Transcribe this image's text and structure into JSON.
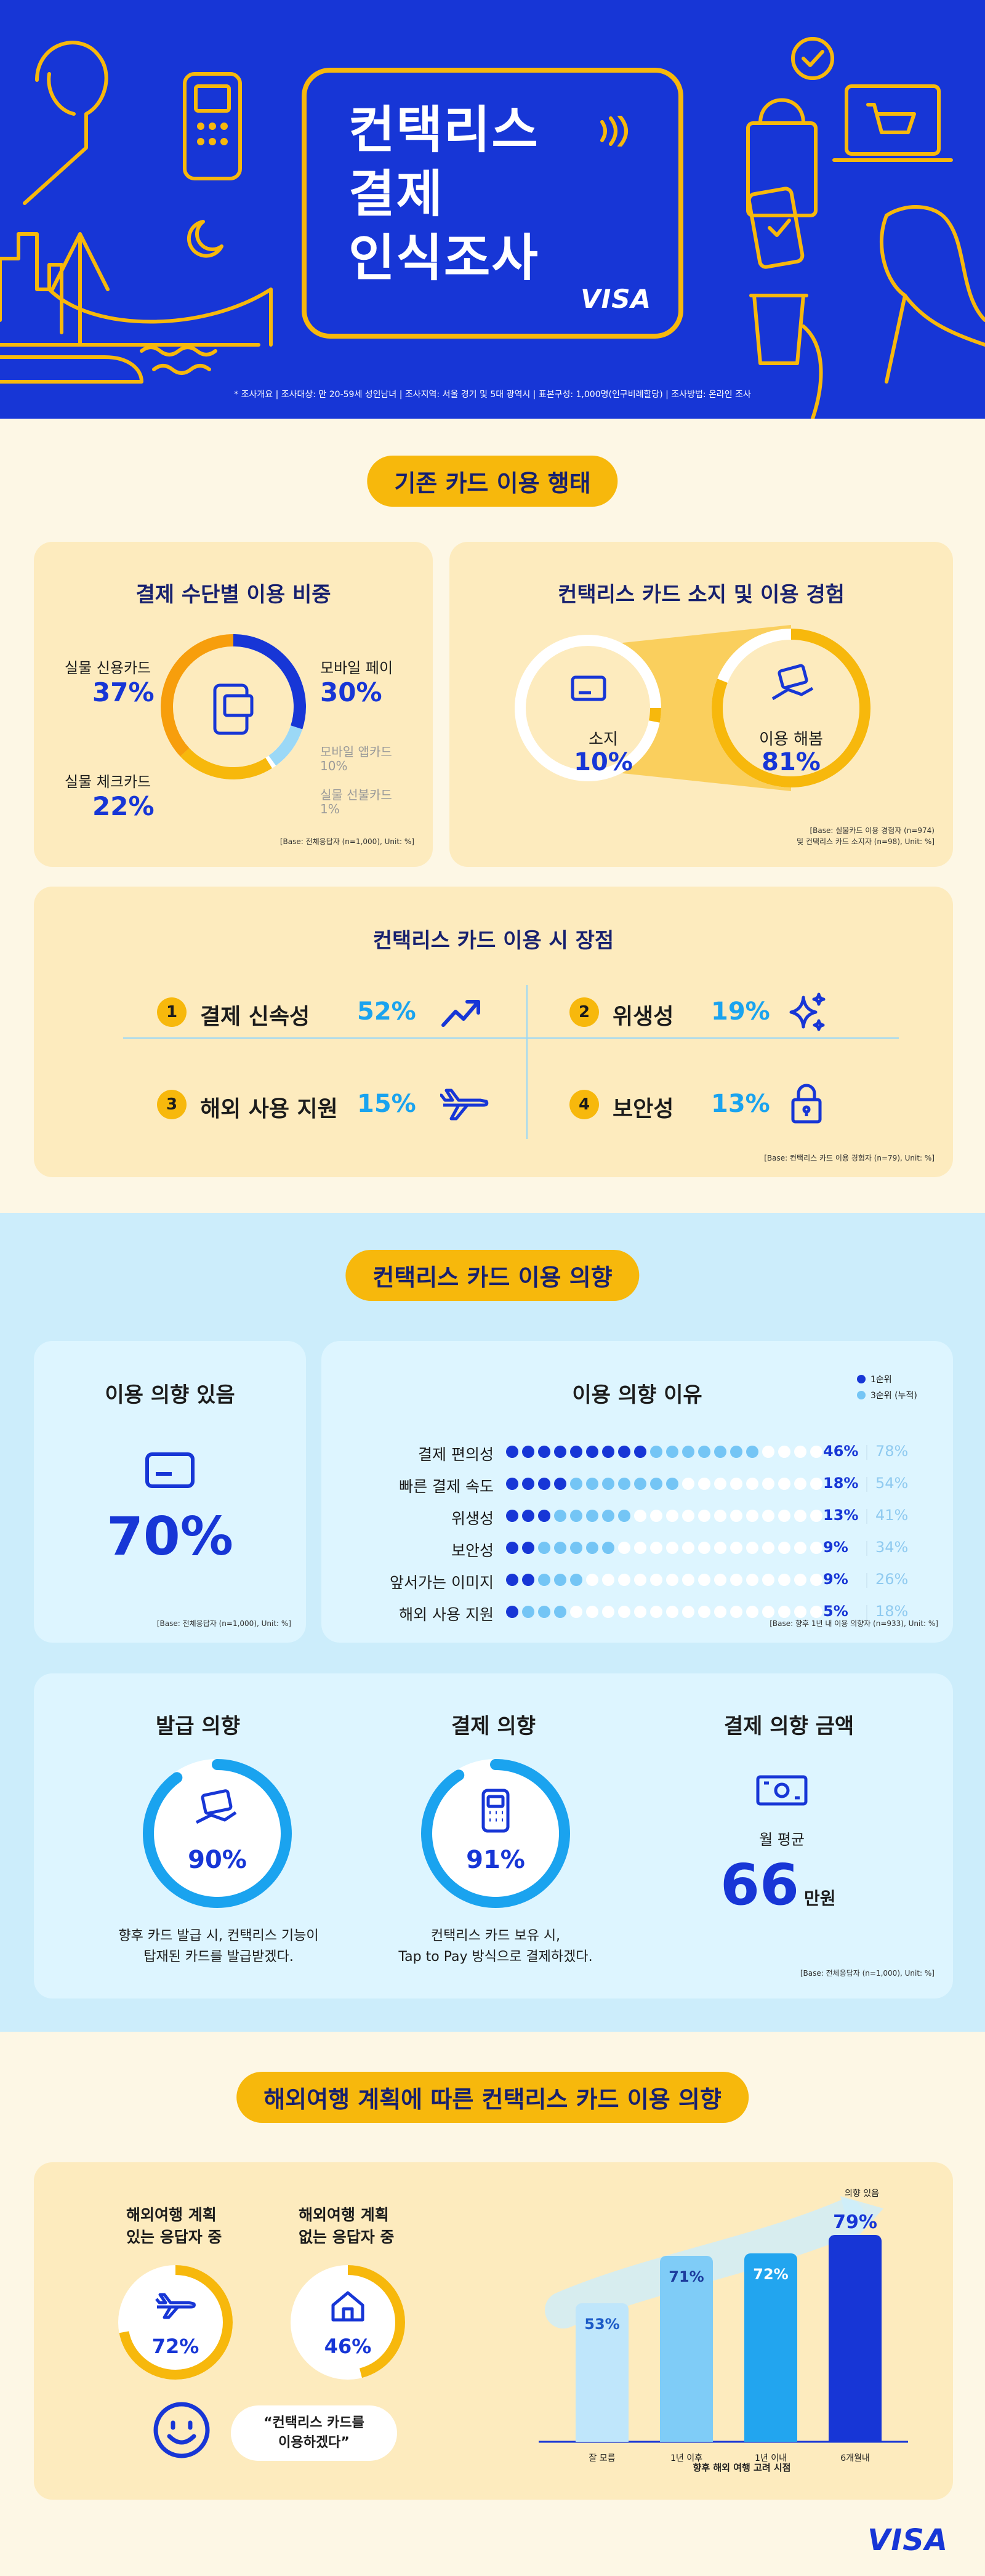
{
  "hero": {
    "title_line1": "컨택리스",
    "title_line2": "결제",
    "title_line3": "인식조사",
    "brand": "VISA",
    "survey_note": "* 조사개요 | 조사대상: 만 20-59세 성인남녀 | 조사지역: 서울 경기 및 5대 광역시 | 표본구성: 1,000명(인구비례할당) | 조사방법: 온라인 조사"
  },
  "section1": {
    "heading": "기존 카드 이용 행태",
    "payment_share": {
      "title": "결제 수단별 이용 비중",
      "items": [
        {
          "label": "실물 신용카드",
          "value": "37%"
        },
        {
          "label": "모바일 페이",
          "value": "30%"
        },
        {
          "label": "실물 체크카드",
          "value": "22%"
        },
        {
          "label": "모바일 앱카드",
          "value": "10%"
        },
        {
          "label": "실물 선불카드",
          "value": "1%"
        }
      ],
      "base": "[Base: 전체응답자 (n=1,000), Unit: %]"
    },
    "ownership": {
      "title": "컨택리스 카드 소지 및 이용 경험",
      "own_label": "소지",
      "own_value": "10%",
      "use_label": "이용 해봄",
      "use_value": "81%",
      "base1": "[Base: 실물카드 이용 경험자 (n=974)",
      "base2": "및 컨택리스 카드 소지자 (n=98), Unit: %]"
    },
    "advantages": {
      "title": "컨택리스 카드 이용 시 장점",
      "items": [
        {
          "rank": "1",
          "label": "결제 신속성",
          "value": "52%",
          "icon": "trend-up-icon"
        },
        {
          "rank": "2",
          "label": "위생성",
          "value": "19%",
          "icon": "sparkle-icon"
        },
        {
          "rank": "3",
          "label": "해외 사용 지원",
          "value": "15%",
          "icon": "airplane-icon"
        },
        {
          "rank": "4",
          "label": "보안성",
          "value": "13%",
          "icon": "lock-icon"
        }
      ],
      "base": "[Base: 컨택리스 카드 이용 경험자 (n=79), Unit: %]"
    }
  },
  "section2": {
    "heading": "컨택리스 카드 이용 의향",
    "intent": {
      "title": "이용 의향 있음",
      "value": "70%",
      "base": "[Base: 전체응답자 (n=1,000), Unit: %]"
    },
    "reasons": {
      "title": "이용 의향 이유",
      "legend1": "1순위",
      "legend2": "3순위 (누적)",
      "rows": [
        {
          "label": "결제 편의성",
          "first": "46%",
          "cum": "78%",
          "f": 46,
          "c": 78
        },
        {
          "label": "빠른 결제 속도",
          "first": "18%",
          "cum": "54%",
          "f": 18,
          "c": 54
        },
        {
          "label": "위생성",
          "first": "13%",
          "cum": "41%",
          "f": 13,
          "c": 41
        },
        {
          "label": "보안성",
          "first": "9%",
          "cum": "34%",
          "f": 9,
          "c": 34
        },
        {
          "label": "앞서가는 이미지",
          "first": "9%",
          "cum": "26%",
          "f": 9,
          "c": 26
        },
        {
          "label": "해외 사용 지원",
          "first": "5%",
          "cum": "18%",
          "f": 5,
          "c": 18
        }
      ],
      "base": "[Base: 향후 1년 내 이용 의향자 (n=933), Unit: %]"
    },
    "issue": {
      "title": "발급 의향",
      "value": "90%",
      "pct": 90,
      "desc1": "향후 카드 발급 시, 컨택리스 기능이",
      "desc2": "탑재된 카드를 발급받겠다."
    },
    "pay": {
      "title": "결제 의향",
      "value": "91%",
      "pct": 91,
      "desc1": "컨택리스 카드 보유 시,",
      "desc2": "Tap to Pay 방식으로 결제하겠다."
    },
    "amount": {
      "title": "결제 의향 금액",
      "avg_label": "월 평균",
      "value": "66",
      "unit": "만원"
    },
    "base": "[Base: 전체응답자 (n=1,000), Unit: %]"
  },
  "section3": {
    "heading": "해외여행 계획에 따른 컨택리스 카드 이용 의향",
    "plan_yes_label1": "해외여행 계획",
    "plan_yes_label2": "있는 응답자 중",
    "plan_yes_value": "72%",
    "plan_yes_pct": 72,
    "plan_no_label1": "해외여행 계획",
    "plan_no_label2": "없는 응답자 중",
    "plan_no_value": "46%",
    "plan_no_pct": 46,
    "quote1": "“컨택리스 카드를",
    "quote2": "이용하겠다”",
    "top_label": "의향 있음",
    "bars": [
      {
        "label": "잘 모름",
        "value": "53%",
        "v": 53,
        "color": "#bfe6fb",
        "text": "#1c5bc7"
      },
      {
        "label": "1년 이후",
        "value": "71%",
        "v": 71,
        "color": "#7fccf7",
        "text": "#1c3c9e"
      },
      {
        "label": "1년 이내",
        "value": "72%",
        "v": 72,
        "color": "#22a5ef",
        "text": "#ffffff"
      },
      {
        "label": "6개월내",
        "value": "79%",
        "v": 79,
        "color": "#1736d6",
        "text": "#ffffff"
      }
    ],
    "x_title": "향후 해외 여행 고려 시점",
    "brand": "VISA"
  }
}
